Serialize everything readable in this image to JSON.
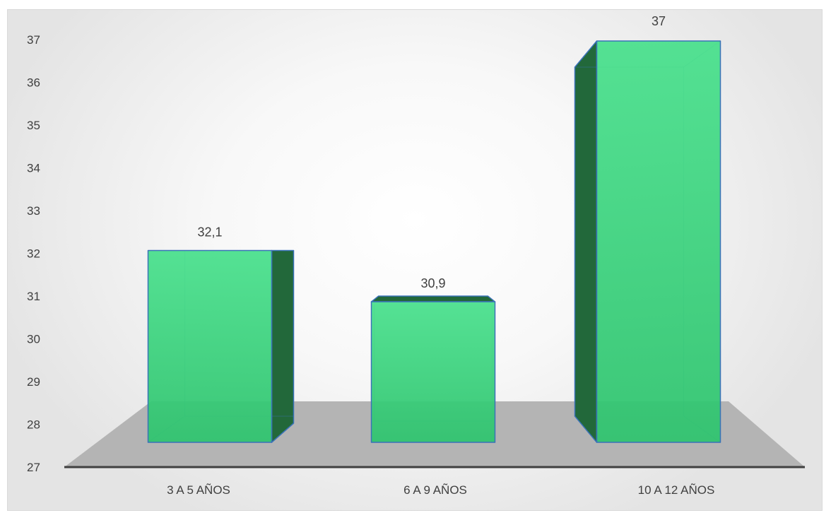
{
  "chart_data": {
    "type": "bar",
    "categories": [
      "3 A 5 AÑOS",
      "6 A 9 AÑOS",
      "10 A 12 AÑOS"
    ],
    "values": [
      32.1,
      30.9,
      37
    ],
    "data_labels": [
      "32,1",
      "30,9",
      "37"
    ],
    "title": "",
    "xlabel": "",
    "ylabel": "",
    "ylim": [
      27,
      37
    ],
    "yticks": [
      27,
      28,
      29,
      30,
      31,
      32,
      33,
      34,
      35,
      36,
      37
    ],
    "grid": false,
    "legend": "none",
    "style": "3d-bar",
    "colors": {
      "bar_front": "#2ec46e",
      "bar_front_light": "#48e08c",
      "bar_side": "#22683a",
      "bar_edge": "#3a72b8",
      "floor": "#b4b4b4",
      "axis_line": "#404040",
      "text": "#404040"
    }
  }
}
